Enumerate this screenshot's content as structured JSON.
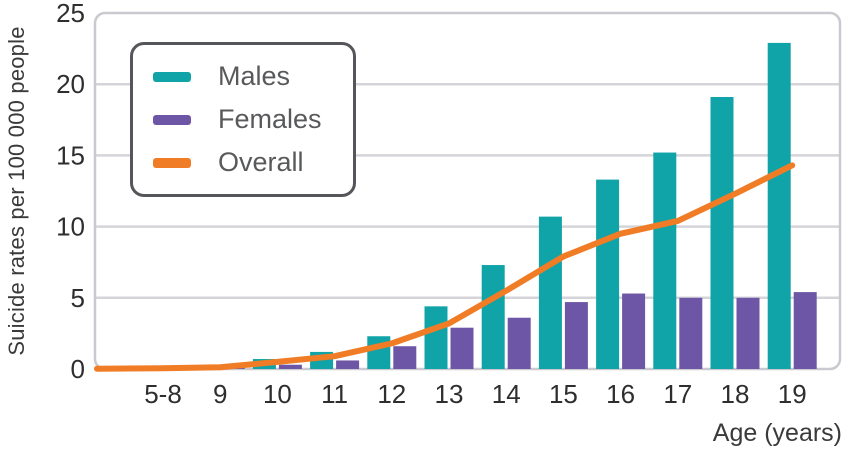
{
  "figure": {
    "y_axis_title": "Suicide rates per 100 000 people",
    "x_axis_title": "Age (years)"
  },
  "colors": {
    "males_bar": "#10a3a8",
    "females_bar": "#6e56a6",
    "overall_line": "#f07c26",
    "gridline": "#d4d4d9",
    "frame": "#c9c9cf",
    "tick_text": "#2e2e2e",
    "axis_title_text": "#3a3a3a",
    "legend_text": "#58595b",
    "legend_border": "#55565a"
  },
  "chart_data": {
    "type": "bar",
    "title": "",
    "xlabel": "Age (years)",
    "ylabel": "Suicide rates per 100 000 people",
    "ylim": [
      0,
      25
    ],
    "y_ticks": [
      0,
      5,
      10,
      15,
      20,
      25
    ],
    "grid": true,
    "legend_position": "upper-left",
    "categories": [
      "5-8",
      "9",
      "10",
      "11",
      "12",
      "13",
      "14",
      "15",
      "16",
      "17",
      "18",
      "19"
    ],
    "series": [
      {
        "name": "Males",
        "type": "bar",
        "color": "#10a3a8",
        "values": [
          0.05,
          0.15,
          0.7,
          1.2,
          2.3,
          4.4,
          7.3,
          10.7,
          13.3,
          15.2,
          19.1,
          22.9
        ]
      },
      {
        "name": "Females",
        "type": "bar",
        "color": "#6e56a6",
        "values": [
          0.03,
          0.1,
          0.3,
          0.6,
          1.6,
          2.9,
          3.6,
          4.7,
          5.3,
          5.0,
          5.0,
          5.4
        ]
      },
      {
        "name": "Overall",
        "type": "line",
        "color": "#f07c26",
        "values": [
          0.05,
          0.12,
          0.5,
          0.9,
          1.8,
          3.2,
          5.5,
          7.9,
          9.5,
          10.4,
          12.3,
          14.3
        ]
      }
    ]
  }
}
